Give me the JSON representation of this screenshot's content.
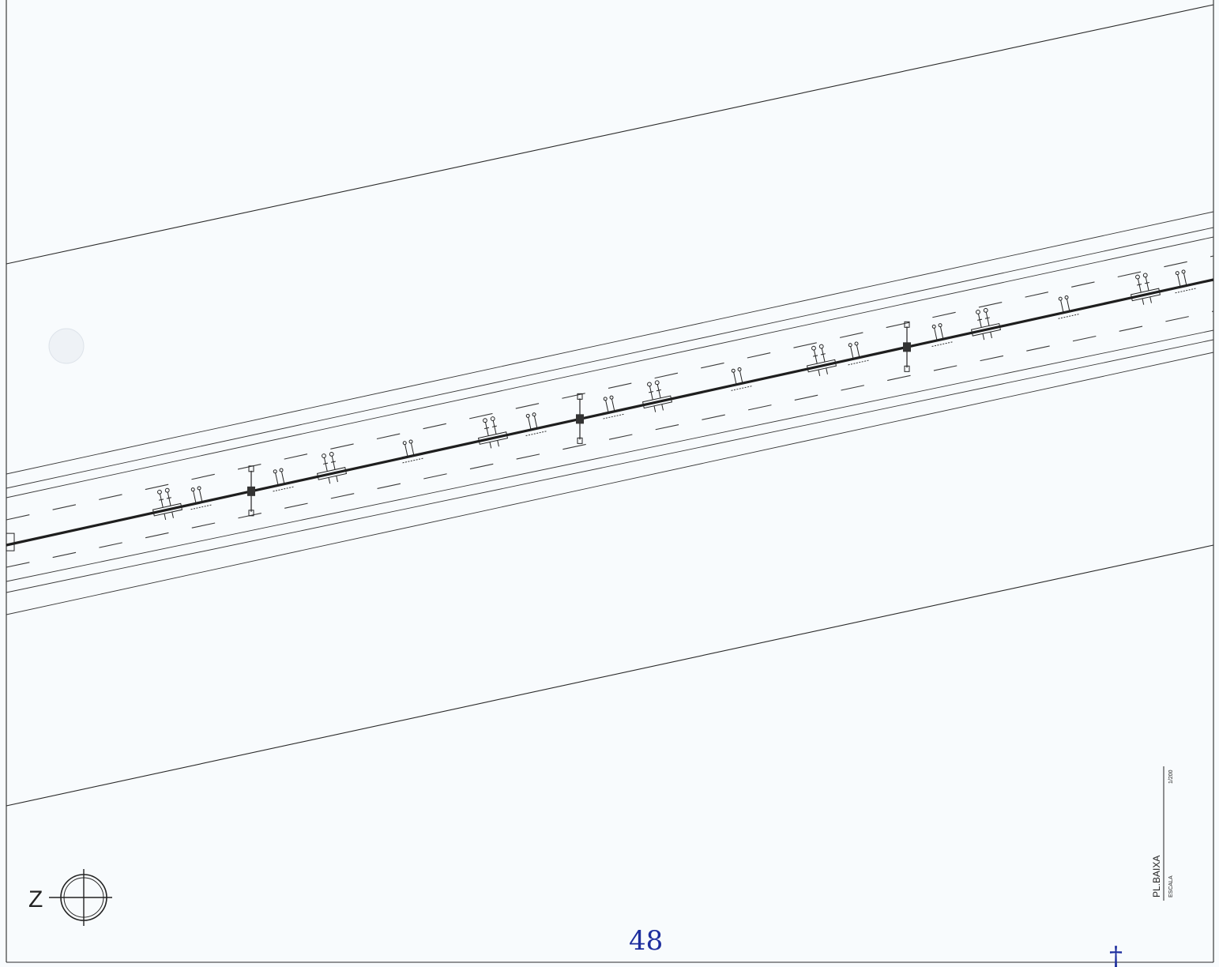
{
  "north": {
    "label": "Z"
  },
  "title_block": {
    "title": "PL.BAIXA",
    "scale_caption": "ESCALA",
    "scale_value": "1/200"
  },
  "annotations": {
    "page_number": "48",
    "mark": "†"
  }
}
